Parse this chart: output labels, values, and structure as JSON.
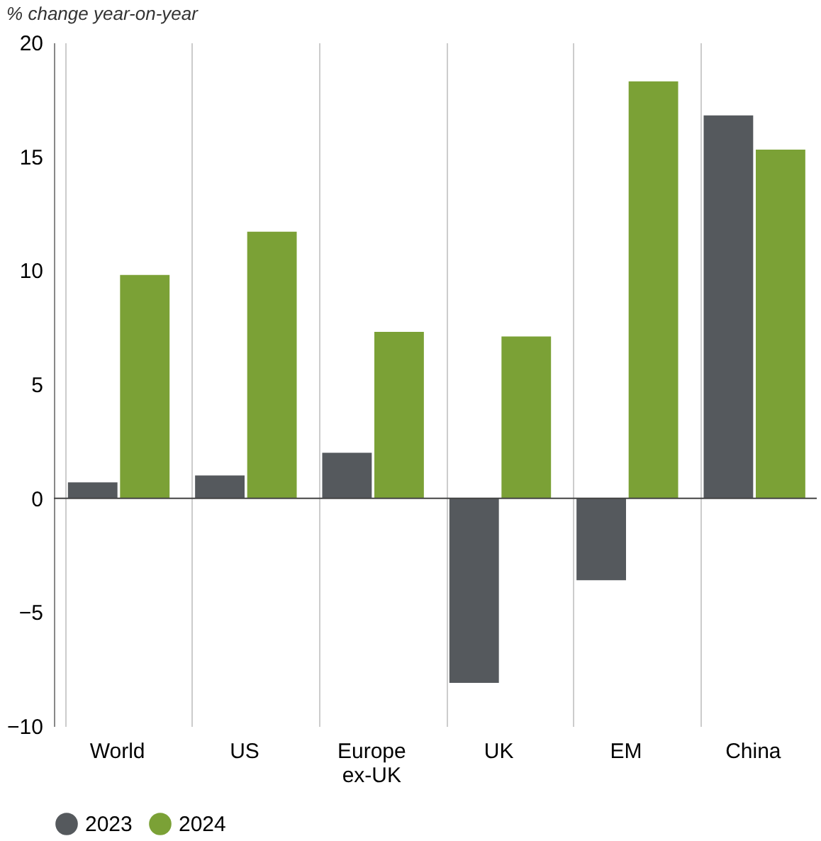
{
  "chart_data": {
    "type": "bar",
    "ylabel": "% change year-on-year",
    "categories": [
      "World",
      "US",
      "Europe ex-UK",
      "UK",
      "EM",
      "China"
    ],
    "series": [
      {
        "name": "2023",
        "color": "#55595d",
        "values": [
          0.7,
          1.0,
          2.0,
          -8.1,
          -3.6,
          16.8
        ]
      },
      {
        "name": "2024",
        "color": "#7ba136",
        "values": [
          9.8,
          11.7,
          7.3,
          7.1,
          18.3,
          15.3
        ]
      }
    ],
    "ylim": [
      -10,
      20
    ],
    "yticks": [
      -10,
      -5,
      0,
      5,
      10,
      15,
      20
    ],
    "grid": "x",
    "legend": "bottom",
    "ref_lines": [
      {
        "axis": "y",
        "value": 0
      }
    ]
  }
}
